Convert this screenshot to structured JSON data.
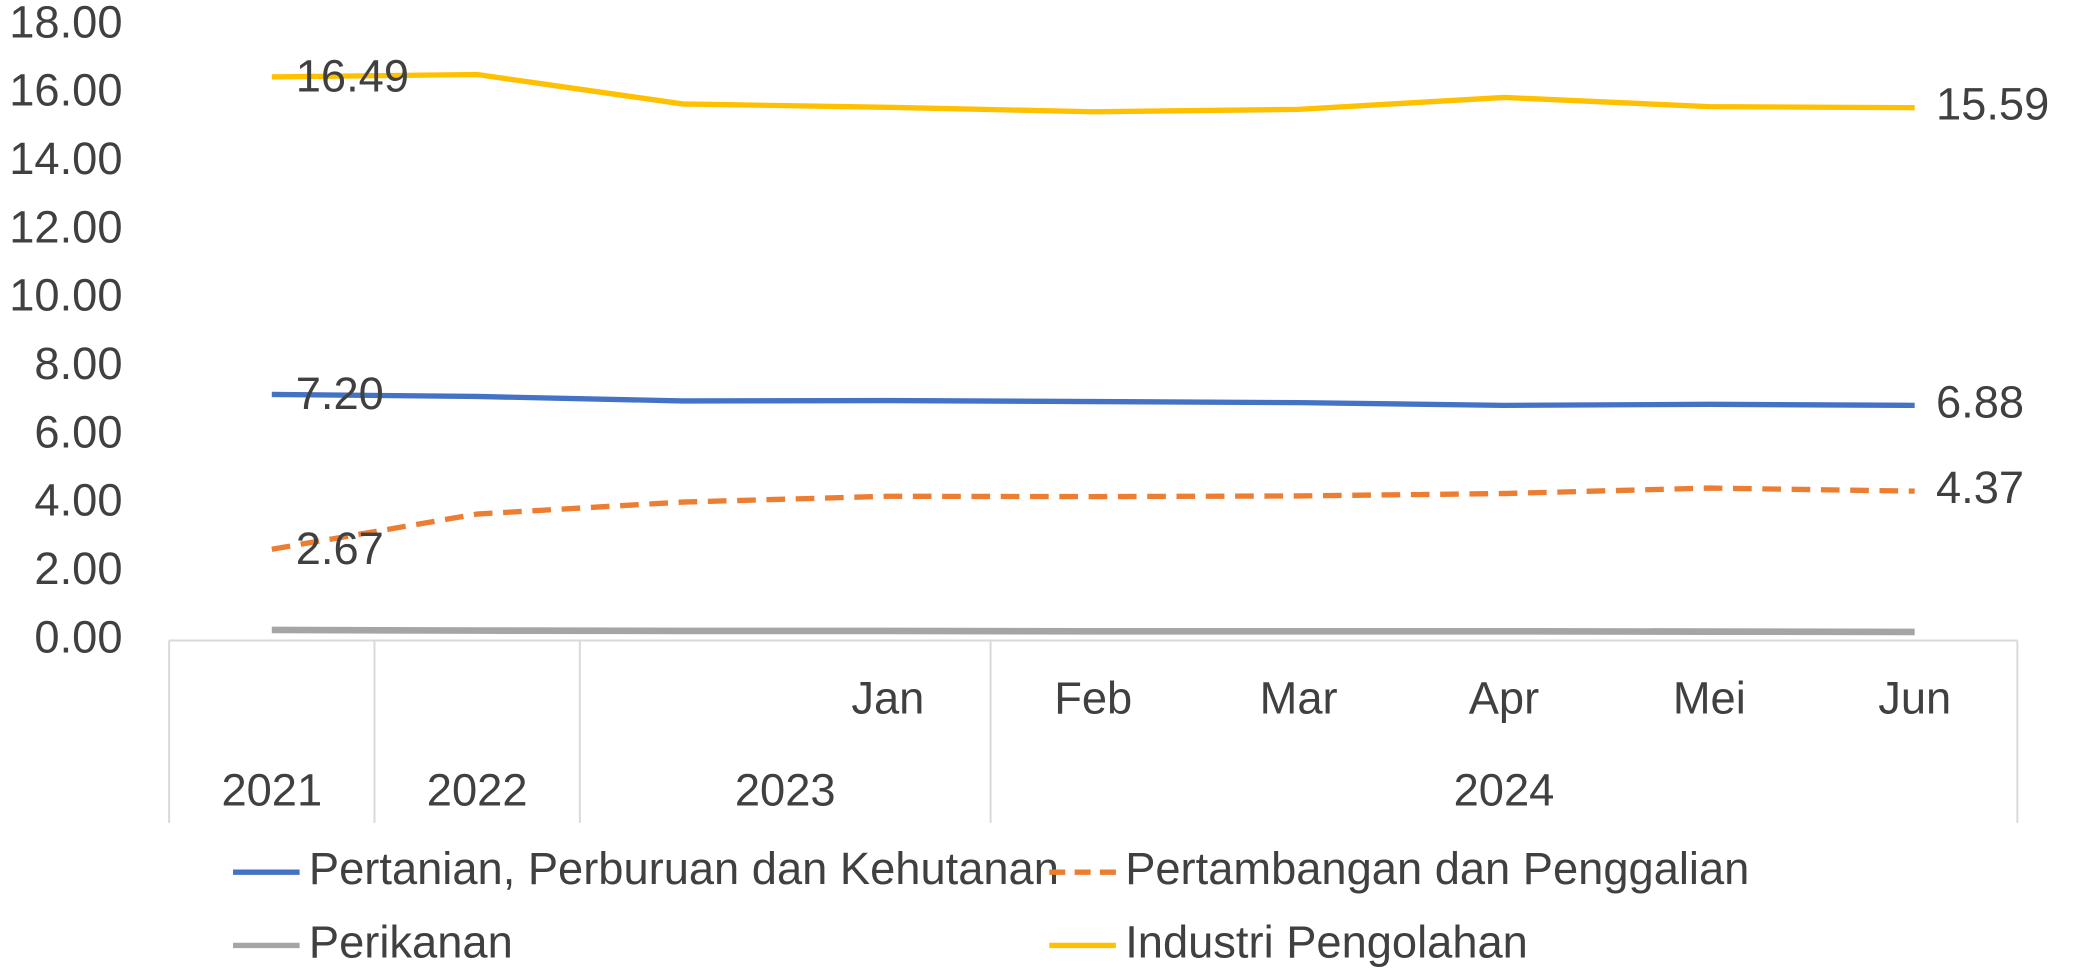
{
  "chart_data": {
    "type": "line",
    "categories": [
      null,
      null,
      null,
      "Jan",
      "Feb",
      "Mar",
      "Apr",
      "Mei",
      "Jun"
    ],
    "groups": [
      {
        "label": "2021",
        "size": 1
      },
      {
        "label": "2022",
        "size": 1
      },
      {
        "label": "2023",
        "size": 2
      },
      {
        "label": "2024",
        "size": 5
      }
    ],
    "ylim": [
      0,
      18
    ],
    "yticks": [
      {
        "value": 0,
        "label": "0.00"
      },
      {
        "value": 2,
        "label": "2.00"
      },
      {
        "value": 4,
        "label": "4.00"
      },
      {
        "value": 6,
        "label": "6.00"
      },
      {
        "value": 8,
        "label": "8.00"
      },
      {
        "value": 10,
        "label": "10.00"
      },
      {
        "value": 12,
        "label": "12.00"
      },
      {
        "value": 14,
        "label": "14.00"
      },
      {
        "value": 16,
        "label": "16.00"
      },
      {
        "value": 18,
        "label": "18.00"
      }
    ],
    "grid": false,
    "legend": "bottom",
    "series": [
      {
        "name": "Pertanian, Perburuan dan Kehutanan",
        "color": "#4472c4",
        "dash": false,
        "values": [
          7.2,
          7.14,
          7.01,
          7.02,
          6.99,
          6.96,
          6.88,
          6.91,
          6.88
        ],
        "value_labels": [
          "7.20",
          null,
          null,
          null,
          null,
          null,
          null,
          null,
          "6.88"
        ]
      },
      {
        "name": "Pertambangan dan Penggalian",
        "color": "#ed7d31",
        "dash": true,
        "values": [
          2.67,
          3.7,
          4.05,
          4.22,
          4.21,
          4.23,
          4.3,
          4.46,
          4.37
        ],
        "value_labels": [
          "2.67",
          null,
          null,
          null,
          null,
          null,
          null,
          null,
          "4.37"
        ]
      },
      {
        "name": "Perikanan",
        "color": "#a5a5a5",
        "dash": false,
        "values": [
          0.31,
          0.29,
          0.28,
          0.28,
          0.27,
          0.27,
          0.27,
          0.26,
          0.25
        ]
      },
      {
        "name": "Industri Pengolahan",
        "color": "#ffc000",
        "dash": false,
        "values": [
          16.49,
          16.56,
          15.7,
          15.6,
          15.47,
          15.54,
          15.89,
          15.62,
          15.59
        ],
        "value_labels": [
          "16.49",
          null,
          null,
          null,
          null,
          null,
          null,
          null,
          "15.59"
        ]
      }
    ]
  }
}
